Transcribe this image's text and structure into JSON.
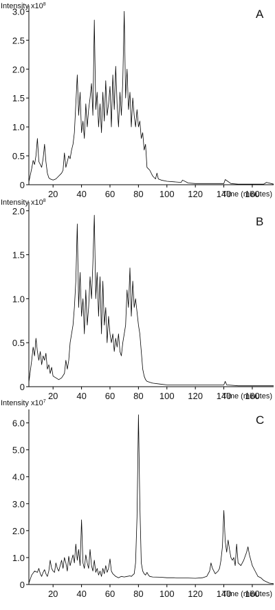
{
  "chart_data": [
    {
      "type": "line",
      "panel_label": "A",
      "ylabel": "Intensity x10",
      "ylabel_exp": "8",
      "xlabel": "Time (minutes)",
      "xlim": [
        3,
        175
      ],
      "ylim": [
        0,
        3.1
      ],
      "x_ticks": [
        20,
        40,
        60,
        80,
        100,
        120,
        140,
        160
      ],
      "y_ticks": [
        0,
        0.5,
        1.0,
        1.5,
        2.0,
        2.5,
        3.0
      ],
      "y_tick_labels": [
        "0",
        "0.5",
        "1.0",
        "1.5",
        "2.0",
        "2.5",
        "3.0"
      ],
      "series": [
        {
          "x": [
            3,
            5,
            6,
            7,
            8,
            9,
            10,
            11,
            12,
            13,
            14,
            15,
            16,
            17,
            18,
            20,
            22,
            24,
            26,
            27,
            28,
            29,
            30,
            31,
            32,
            33,
            34,
            35,
            36,
            37,
            38,
            39,
            40,
            41,
            42,
            43,
            44,
            45,
            46,
            47,
            48,
            49,
            50,
            51,
            52,
            53,
            54,
            55,
            56,
            57,
            58,
            59,
            60,
            61,
            62,
            63,
            64,
            65,
            66,
            67,
            68,
            69,
            70,
            71,
            72,
            73,
            74,
            75,
            76,
            77,
            78,
            79,
            80,
            81,
            82,
            83,
            84,
            85,
            86,
            88,
            90,
            92,
            93,
            94,
            96,
            100,
            110,
            111,
            115,
            120,
            130,
            140,
            141,
            145,
            150,
            160,
            168,
            170,
            175
          ],
          "y": [
            0.05,
            0.28,
            0.42,
            0.35,
            0.5,
            0.8,
            0.4,
            0.35,
            0.3,
            0.45,
            0.7,
            0.4,
            0.2,
            0.12,
            0.1,
            0.08,
            0.1,
            0.15,
            0.2,
            0.25,
            0.55,
            0.3,
            0.4,
            0.5,
            0.45,
            0.6,
            0.7,
            0.9,
            1.4,
            1.9,
            1.2,
            1.6,
            0.9,
            1.1,
            0.8,
            1.4,
            1.0,
            1.3,
            1.5,
            1.75,
            1.2,
            2.85,
            1.3,
            1.6,
            1.0,
            1.4,
            0.9,
            1.6,
            1.1,
            1.8,
            1.2,
            1.4,
            1.7,
            1.0,
            1.9,
            1.3,
            2.05,
            1.4,
            1.0,
            1.6,
            1.2,
            1.8,
            3.0,
            1.5,
            2.0,
            1.3,
            1.6,
            1.0,
            1.5,
            1.2,
            1.0,
            1.3,
            1.0,
            1.1,
            0.8,
            0.9,
            0.6,
            0.7,
            0.3,
            0.25,
            0.15,
            0.1,
            0.2,
            0.1,
            0.08,
            0.06,
            0.04,
            0.08,
            0.03,
            0.02,
            0.02,
            0.02,
            0.09,
            0.02,
            0.01,
            0.01,
            0.01,
            0.04,
            0.01
          ]
        }
      ]
    },
    {
      "type": "line",
      "panel_label": "B",
      "ylabel": "Intensity x10",
      "ylabel_exp": "8",
      "xlabel": "Time (minutes)",
      "xlim": [
        3,
        175
      ],
      "ylim": [
        0,
        2.1
      ],
      "x_ticks": [
        20,
        40,
        60,
        80,
        100,
        120,
        140,
        160
      ],
      "y_ticks": [
        0,
        0.5,
        1.0,
        1.5,
        2.0
      ],
      "y_tick_labels": [
        "0",
        "0.5",
        "1.0",
        "1.5",
        "2.0"
      ],
      "series": [
        {
          "x": [
            3,
            5,
            6,
            7,
            8,
            9,
            10,
            11,
            12,
            13,
            14,
            15,
            16,
            17,
            18,
            19,
            20,
            22,
            24,
            26,
            28,
            29,
            30,
            31,
            32,
            33,
            34,
            35,
            36,
            37,
            38,
            39,
            40,
            41,
            42,
            43,
            44,
            45,
            46,
            47,
            48,
            49,
            50,
            51,
            52,
            53,
            54,
            55,
            56,
            57,
            58,
            59,
            60,
            61,
            62,
            63,
            64,
            65,
            66,
            67,
            68,
            69,
            70,
            71,
            72,
            73,
            74,
            75,
            76,
            77,
            78,
            79,
            80,
            81,
            82,
            83,
            84,
            85,
            86,
            88,
            90,
            95,
            100,
            110,
            120,
            130,
            140,
            141,
            142,
            150,
            160,
            170,
            175
          ],
          "y": [
            0.05,
            0.3,
            0.45,
            0.35,
            0.55,
            0.4,
            0.3,
            0.4,
            0.25,
            0.35,
            0.3,
            0.38,
            0.2,
            0.25,
            0.15,
            0.22,
            0.12,
            0.1,
            0.08,
            0.1,
            0.15,
            0.3,
            0.2,
            0.3,
            0.5,
            0.6,
            0.7,
            0.9,
            1.2,
            1.85,
            0.9,
            1.3,
            0.8,
            1.0,
            0.6,
            1.1,
            0.7,
            0.9,
            1.25,
            1.0,
            1.4,
            1.95,
            1.0,
            1.3,
            0.8,
            1.25,
            0.6,
            1.2,
            0.7,
            0.9,
            0.5,
            0.8,
            0.6,
            0.5,
            0.6,
            0.4,
            0.55,
            0.45,
            0.6,
            0.4,
            0.35,
            0.5,
            0.6,
            0.7,
            1.1,
            0.9,
            1.35,
            0.8,
            1.2,
            0.9,
            1.0,
            0.85,
            0.7,
            0.6,
            0.4,
            0.2,
            0.12,
            0.08,
            0.06,
            0.05,
            0.04,
            0.03,
            0.02,
            0.02,
            0.02,
            0.02,
            0.02,
            0.06,
            0.02,
            0.01,
            0.01,
            0.01,
            0.01
          ]
        }
      ]
    },
    {
      "type": "line",
      "panel_label": "C",
      "ylabel": "Intensity x10",
      "ylabel_exp": "7",
      "xlabel": "Time (minutes)",
      "xlim": [
        3,
        175
      ],
      "ylim": [
        0,
        6.5
      ],
      "x_ticks": [
        20,
        40,
        60,
        80,
        100,
        120,
        140,
        160
      ],
      "y_ticks": [
        0,
        1.0,
        2.0,
        3.0,
        4.0,
        5.0,
        6.0
      ],
      "y_tick_labels": [
        "0",
        "1.0",
        "2.0",
        "3.0",
        "4.0",
        "5.0",
        "6.0"
      ],
      "series": [
        {
          "x": [
            3,
            5,
            7,
            9,
            10,
            11,
            12,
            13,
            14,
            15,
            16,
            17,
            18,
            19,
            20,
            21,
            22,
            23,
            24,
            25,
            26,
            27,
            28,
            29,
            30,
            31,
            32,
            33,
            34,
            35,
            36,
            37,
            38,
            39,
            40,
            41,
            42,
            43,
            44,
            45,
            46,
            47,
            48,
            49,
            50,
            51,
            52,
            53,
            54,
            55,
            56,
            57,
            58,
            59,
            60,
            61,
            62,
            63,
            64,
            66,
            68,
            70,
            72,
            74,
            75,
            76,
            77,
            78,
            79,
            80,
            81,
            82,
            83,
            84,
            85,
            86,
            87,
            88,
            90,
            95,
            100,
            105,
            110,
            115,
            120,
            125,
            128,
            130,
            131,
            132,
            134,
            136,
            137,
            138,
            139,
            140,
            141,
            142,
            143,
            144,
            145,
            146,
            147,
            148,
            149,
            150,
            152,
            154,
            156,
            157,
            158,
            160,
            162,
            164,
            166,
            168,
            170,
            172,
            175
          ],
          "y": [
            0.05,
            0.35,
            0.5,
            0.45,
            0.6,
            0.4,
            0.3,
            0.45,
            0.55,
            0.4,
            0.3,
            0.5,
            0.9,
            0.6,
            0.5,
            0.45,
            0.8,
            0.6,
            0.5,
            0.7,
            0.9,
            0.6,
            1.0,
            0.8,
            0.5,
            1.05,
            0.7,
            0.9,
            1.1,
            0.8,
            1.5,
            0.9,
            1.3,
            0.7,
            2.4,
            0.8,
            0.6,
            1.1,
            0.8,
            0.6,
            1.3,
            0.7,
            0.5,
            0.9,
            0.45,
            0.6,
            0.35,
            0.5,
            0.3,
            0.6,
            0.4,
            0.7,
            0.45,
            0.6,
            0.95,
            0.5,
            0.4,
            0.35,
            0.3,
            0.25,
            0.3,
            0.28,
            0.3,
            0.32,
            0.3,
            0.35,
            0.4,
            0.8,
            2.5,
            6.3,
            3.0,
            0.8,
            0.5,
            0.4,
            0.35,
            0.45,
            0.35,
            0.3,
            0.28,
            0.27,
            0.25,
            0.25,
            0.24,
            0.24,
            0.23,
            0.25,
            0.3,
            0.5,
            0.8,
            0.6,
            0.4,
            0.5,
            0.6,
            0.9,
            1.4,
            2.75,
            1.6,
            1.2,
            1.65,
            1.3,
            1.0,
            0.9,
            1.0,
            0.7,
            1.5,
            0.8,
            0.7,
            0.9,
            1.2,
            1.4,
            1.1,
            0.7,
            0.5,
            0.3,
            0.25,
            0.15,
            0.1,
            0.05,
            0.03
          ]
        }
      ]
    }
  ]
}
